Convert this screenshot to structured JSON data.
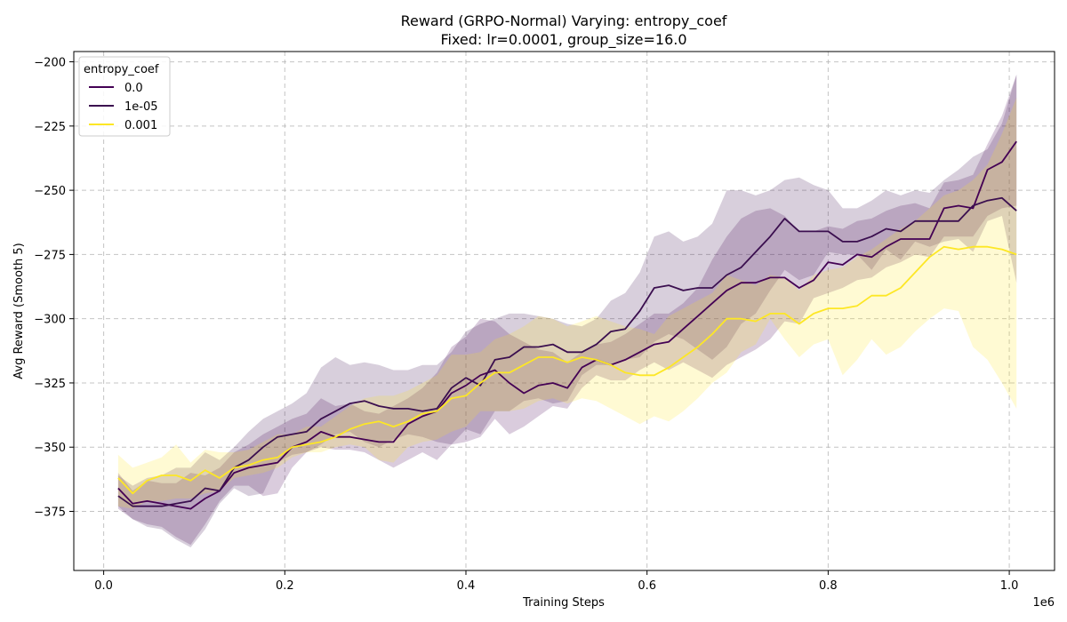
{
  "chart_data": {
    "type": "line",
    "title": "Reward (GRPO-Normal) Varying: entropy_coef",
    "subtitle": "Fixed: lr=0.0001, group_size=16.0",
    "xlabel": "Training Steps",
    "ylabel": "Avg Reward (Smooth 5)",
    "x_offset_label": "1e6",
    "xlim": [
      -0.033,
      1.05
    ],
    "ylim": [
      -398,
      -196
    ],
    "x_ticks": [
      0.0,
      0.2,
      0.4,
      0.6,
      0.8,
      1.0
    ],
    "x_tick_labels": [
      "0.0",
      "0.2",
      "0.4",
      "0.6",
      "0.8",
      "1.0"
    ],
    "y_ticks": [
      -375,
      -350,
      -325,
      -300,
      -275,
      -250,
      -225,
      -200
    ],
    "y_tick_labels": [
      "−375",
      "−350",
      "−325",
      "−300",
      "−275",
      "−250",
      "−225",
      "−200"
    ],
    "grid": true,
    "legend": {
      "title": "entropy_coef",
      "placement": "top-left"
    },
    "series": [
      {
        "name": "0.0",
        "color": "#440154",
        "x": [
          0.016,
          0.032,
          0.048,
          0.064,
          0.08,
          0.096,
          0.112,
          0.128,
          0.144,
          0.16,
          0.176,
          0.192,
          0.208,
          0.224,
          0.24,
          0.256,
          0.272,
          0.288,
          0.304,
          0.32,
          0.336,
          0.352,
          0.368,
          0.384,
          0.4,
          0.416,
          0.432,
          0.448,
          0.464,
          0.48,
          0.496,
          0.512,
          0.528,
          0.544,
          0.56,
          0.576,
          0.592,
          0.608,
          0.624,
          0.64,
          0.656,
          0.672,
          0.688,
          0.704,
          0.72,
          0.736,
          0.752,
          0.768,
          0.784,
          0.8,
          0.816,
          0.832,
          0.848,
          0.864,
          0.88,
          0.896,
          0.912,
          0.928,
          0.944,
          0.96,
          0.976,
          0.992,
          1.008
        ],
        "y": [
          -366,
          -372,
          -371,
          -372,
          -373,
          -374,
          -370,
          -367,
          -360,
          -358,
          -357,
          -356,
          -350,
          -348,
          -344,
          -346,
          -346,
          -347,
          -348,
          -348,
          -341,
          -338,
          -336,
          -329,
          -326,
          -322,
          -320,
          -325,
          -329,
          -326,
          -325,
          -327,
          -319,
          -316,
          -318,
          -316,
          -313,
          -310,
          -309,
          -304,
          -299,
          -294,
          -289,
          -286,
          -286,
          -284,
          -284,
          -288,
          -285,
          -278,
          -279,
          -275,
          -276,
          -272,
          -269,
          -269,
          -269,
          -257,
          -256,
          -257,
          -242,
          -239,
          -231
        ],
        "y_low": [
          -374,
          -378,
          -380,
          -381,
          -385,
          -388,
          -380,
          -371,
          -365,
          -365,
          -369,
          -368,
          -358,
          -352,
          -350,
          -351,
          -351,
          -352,
          -355,
          -358,
          -355,
          -352,
          -355,
          -349,
          -348,
          -346,
          -339,
          -345,
          -342,
          -338,
          -334,
          -335,
          -327,
          -322,
          -324,
          -324,
          -320,
          -317,
          -320,
          -317,
          -320,
          -323,
          -318,
          -315,
          -312,
          -308,
          -301,
          -302,
          -292,
          -290,
          -288,
          -285,
          -284,
          -280,
          -278,
          -275,
          -276,
          -268,
          -268,
          -268,
          -260,
          -257,
          -256
        ],
        "y_high": [
          -360,
          -367,
          -363,
          -364,
          -364,
          -360,
          -361,
          -358,
          -352,
          -349,
          -345,
          -342,
          -339,
          -337,
          -331,
          -334,
          -333,
          -336,
          -337,
          -334,
          -331,
          -327,
          -321,
          -311,
          -307,
          -300,
          -301,
          -306,
          -309,
          -312,
          -313,
          -317,
          -313,
          -310,
          -309,
          -306,
          -302,
          -298,
          -298,
          -294,
          -288,
          -277,
          -268,
          -261,
          -258,
          -257,
          -260,
          -266,
          -266,
          -264,
          -265,
          -262,
          -261,
          -258,
          -256,
          -255,
          -257,
          -247,
          -246,
          -244,
          -232,
          -221,
          -205
        ]
      },
      {
        "name": "1e-05",
        "color": "#3b0f4f",
        "x": [
          0.016,
          0.032,
          0.048,
          0.064,
          0.08,
          0.096,
          0.112,
          0.128,
          0.144,
          0.16,
          0.176,
          0.192,
          0.208,
          0.224,
          0.24,
          0.256,
          0.272,
          0.288,
          0.304,
          0.32,
          0.336,
          0.352,
          0.368,
          0.384,
          0.4,
          0.416,
          0.432,
          0.448,
          0.464,
          0.48,
          0.496,
          0.512,
          0.528,
          0.544,
          0.56,
          0.576,
          0.592,
          0.608,
          0.624,
          0.64,
          0.656,
          0.672,
          0.688,
          0.704,
          0.72,
          0.736,
          0.752,
          0.768,
          0.784,
          0.8,
          0.816,
          0.832,
          0.848,
          0.864,
          0.88,
          0.896,
          0.912,
          0.928,
          0.944,
          0.96,
          0.976,
          0.992,
          1.008
        ],
        "y": [
          -369,
          -373,
          -373,
          -373,
          -372,
          -371,
          -366,
          -367,
          -358,
          -355,
          -350,
          -346,
          -345,
          -344,
          -339,
          -336,
          -333,
          -332,
          -334,
          -335,
          -335,
          -336,
          -335,
          -327,
          -323,
          -326,
          -316,
          -315,
          -311,
          -311,
          -310,
          -313,
          -313,
          -310,
          -305,
          -304,
          -297,
          -288,
          -287,
          -289,
          -288,
          -288,
          -283,
          -280,
          -274,
          -268,
          -261,
          -266,
          -266,
          -266,
          -270,
          -270,
          -268,
          -265,
          -266,
          -262,
          -262,
          -262,
          -262,
          -256,
          -254,
          -253,
          -258
        ],
        "y_low": [
          -373,
          -378,
          -381,
          -382,
          -386,
          -389,
          -382,
          -372,
          -366,
          -369,
          -368,
          -356,
          -353,
          -352,
          -349,
          -345,
          -344,
          -348,
          -350,
          -347,
          -345,
          -346,
          -348,
          -349,
          -343,
          -345,
          -336,
          -336,
          -332,
          -331,
          -333,
          -332,
          -322,
          -318,
          -318,
          -316,
          -315,
          -309,
          -306,
          -308,
          -312,
          -316,
          -311,
          -302,
          -298,
          -289,
          -281,
          -285,
          -283,
          -274,
          -275,
          -275,
          -281,
          -273,
          -277,
          -270,
          -272,
          -270,
          -269,
          -274,
          -262,
          -260,
          -286
        ],
        "y_high": [
          -361,
          -365,
          -362,
          -361,
          -358,
          -358,
          -352,
          -355,
          -350,
          -344,
          -339,
          -336,
          -333,
          -329,
          -319,
          -315,
          -318,
          -317,
          -318,
          -320,
          -320,
          -318,
          -318,
          -313,
          -305,
          -302,
          -300,
          -298,
          -298,
          -299,
          -300,
          -302,
          -303,
          -300,
          -293,
          -290,
          -282,
          -268,
          -266,
          -270,
          -268,
          -263,
          -250,
          -250,
          -252,
          -250,
          -246,
          -245,
          -248,
          -250,
          -257,
          -257,
          -254,
          -250,
          -252,
          -250,
          -251,
          -246,
          -242,
          -237,
          -234,
          -224,
          -205
        ]
      },
      {
        "name": "0.001",
        "color": "#fde725",
        "x": [
          0.016,
          0.032,
          0.048,
          0.064,
          0.08,
          0.096,
          0.112,
          0.128,
          0.144,
          0.16,
          0.176,
          0.192,
          0.208,
          0.224,
          0.24,
          0.256,
          0.272,
          0.288,
          0.304,
          0.32,
          0.336,
          0.352,
          0.368,
          0.384,
          0.4,
          0.416,
          0.432,
          0.448,
          0.464,
          0.48,
          0.496,
          0.512,
          0.528,
          0.544,
          0.56,
          0.576,
          0.592,
          0.608,
          0.624,
          0.64,
          0.656,
          0.672,
          0.688,
          0.704,
          0.72,
          0.736,
          0.752,
          0.768,
          0.784,
          0.8,
          0.816,
          0.832,
          0.848,
          0.864,
          0.88,
          0.896,
          0.912,
          0.928,
          0.944,
          0.96,
          0.976,
          0.992,
          1.008
        ],
        "y": [
          -362,
          -368,
          -363,
          -361,
          -361,
          -363,
          -359,
          -362,
          -358,
          -357,
          -355,
          -354,
          -350,
          -349,
          -348,
          -346,
          -343,
          -341,
          -340,
          -342,
          -340,
          -337,
          -336,
          -331,
          -330,
          -325,
          -321,
          -321,
          -318,
          -315,
          -315,
          -317,
          -315,
          -316,
          -318,
          -321,
          -322,
          -322,
          -319,
          -315,
          -311,
          -306,
          -300,
          -300,
          -301,
          -298,
          -298,
          -302,
          -298,
          -296,
          -296,
          -295,
          -291,
          -291,
          -288,
          -282,
          -276,
          -272,
          -273,
          -272,
          -272,
          -273,
          -275
        ],
        "y_low": [
          -373,
          -374,
          -371,
          -371,
          -370,
          -370,
          -368,
          -367,
          -362,
          -361,
          -360,
          -358,
          -354,
          -352,
          -352,
          -350,
          -349,
          -350,
          -355,
          -356,
          -350,
          -348,
          -347,
          -344,
          -342,
          -336,
          -336,
          -336,
          -335,
          -332,
          -331,
          -333,
          -331,
          -332,
          -335,
          -338,
          -341,
          -338,
          -340,
          -336,
          -331,
          -325,
          -321,
          -313,
          -310,
          -300,
          -308,
          -315,
          -310,
          -308,
          -322,
          -316,
          -308,
          -314,
          -311,
          -305,
          -300,
          -296,
          -297,
          -311,
          -316,
          -325,
          -335
        ],
        "y_high": [
          -353,
          -358,
          -356,
          -354,
          -349,
          -356,
          -351,
          -352,
          -352,
          -351,
          -348,
          -345,
          -345,
          -342,
          -342,
          -338,
          -334,
          -331,
          -330,
          -330,
          -328,
          -325,
          -322,
          -314,
          -314,
          -313,
          -308,
          -306,
          -303,
          -299,
          -300,
          -303,
          -301,
          -299,
          -301,
          -303,
          -304,
          -306,
          -299,
          -296,
          -293,
          -290,
          -283,
          -285,
          -287,
          -283,
          -284,
          -289,
          -283,
          -281,
          -280,
          -276,
          -273,
          -269,
          -265,
          -262,
          -257,
          -252,
          -250,
          -246,
          -240,
          -228,
          -214
        ]
      }
    ]
  }
}
